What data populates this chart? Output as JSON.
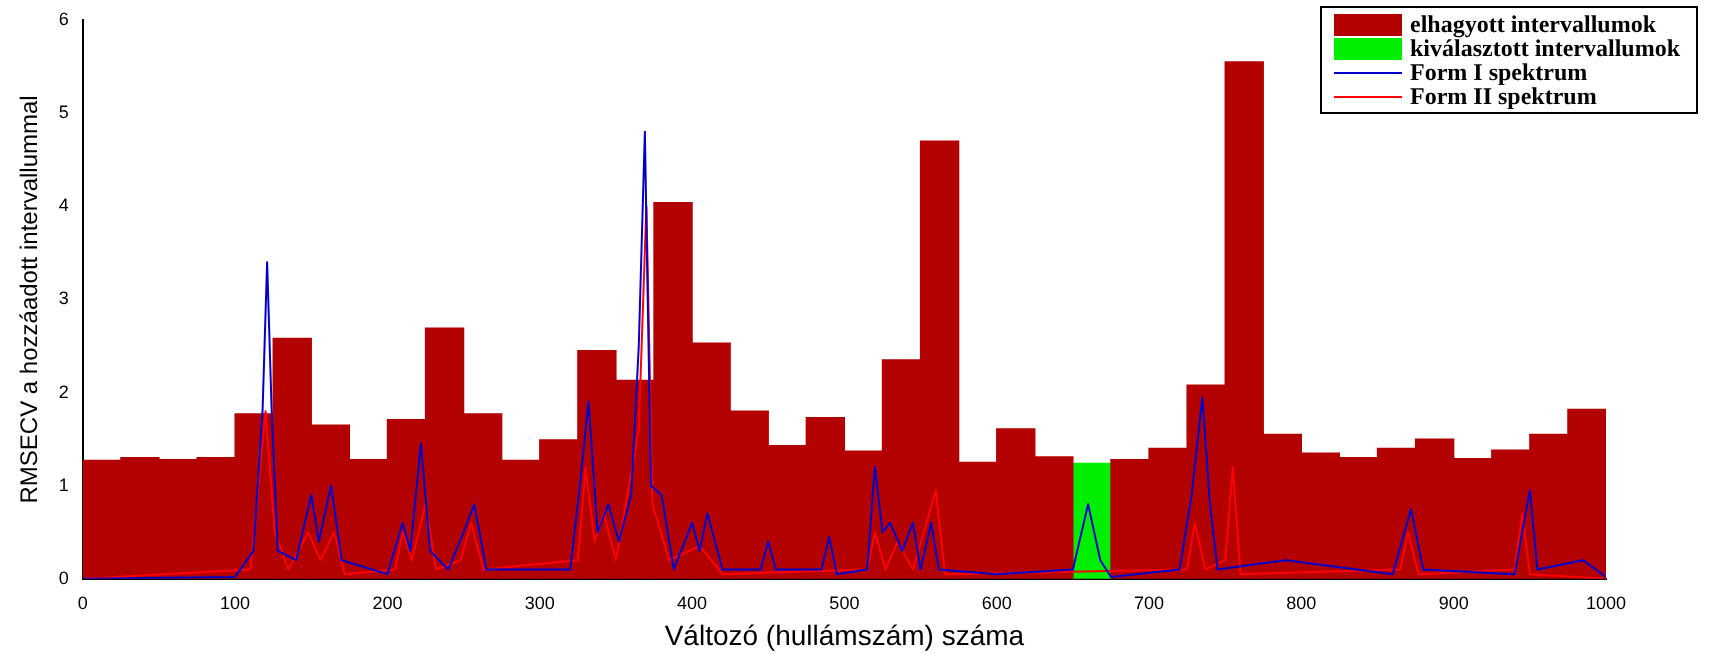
{
  "chart_data": {
    "type": "bar",
    "xlabel": "Változó (hullámszám) száma",
    "ylabel": "RMSECV a hozzáadott intervallummal",
    "xlim": [
      0,
      1000
    ],
    "xticks": [
      0,
      100,
      200,
      300,
      400,
      500,
      600,
      700,
      800,
      900,
      1000
    ],
    "ylim": [
      0,
      6
    ],
    "yticks": [
      0,
      1,
      2,
      3,
      4,
      5,
      6
    ],
    "grid": false,
    "legend": "top right",
    "marker": "none",
    "line_style": "solid",
    "series": [
      {
        "name": "elhagyott intervallumok",
        "color": "#b30000",
        "x": [
          12.5,
          37.5,
          62.5,
          87.5,
          112.5,
          137.5,
          162.5,
          187.5,
          212.5,
          237.5,
          262.5,
          287.5,
          312.5,
          337.5,
          362.5,
          387.5,
          412.5,
          437.5,
          462.5,
          487.5,
          512.5,
          537.5,
          562.5,
          587.5,
          612.5,
          637.5,
          687.5,
          712.5,
          737.5,
          762.5,
          787.5,
          812.5,
          837.5,
          862.5,
          887.5,
          912.5,
          937.5,
          962.5,
          987.5
        ],
        "values": [
          1.27,
          1.3,
          1.28,
          1.3,
          1.77,
          2.58,
          1.65,
          1.28,
          1.71,
          2.69,
          1.77,
          1.27,
          1.49,
          2.45,
          2.13,
          4.04,
          2.53,
          1.8,
          1.43,
          1.73,
          1.37,
          2.35,
          4.7,
          1.25,
          1.61,
          1.31,
          1.28,
          1.4,
          2.08,
          5.55,
          1.55,
          1.35,
          1.3,
          1.4,
          1.5,
          1.29,
          1.38,
          1.55,
          1.82
        ]
      },
      {
        "name": "kiválasztott intervallumok",
        "color": "#00ee00",
        "x": [
          662.5
        ],
        "values": [
          1.24
        ]
      },
      {
        "name": "Form I spektrum",
        "type": "line",
        "color": "#0000cc",
        "x": [
          0,
          100,
          112,
          118,
          121,
          124,
          128,
          140,
          150,
          155,
          163,
          170,
          200,
          210,
          215,
          222,
          228,
          240,
          250,
          257,
          265,
          320,
          326,
          332,
          338,
          345,
          352,
          360,
          365,
          369,
          373,
          380,
          388,
          400,
          405,
          410,
          420,
          445,
          450,
          455,
          485,
          490,
          495,
          515,
          520,
          525,
          530,
          538,
          545,
          550,
          557,
          562,
          600,
          650,
          660,
          668,
          675,
          720,
          728,
          735,
          740,
          745,
          790,
          860,
          872,
          880,
          940,
          950,
          955,
          985,
          1000
        ],
        "values": [
          0,
          0.02,
          0.3,
          1.8,
          3.4,
          1.8,
          0.3,
          0.2,
          0.9,
          0.4,
          1.0,
          0.2,
          0.05,
          0.6,
          0.3,
          1.45,
          0.3,
          0.1,
          0.5,
          0.8,
          0.1,
          0.1,
          0.95,
          1.9,
          0.5,
          0.8,
          0.4,
          0.9,
          2.5,
          4.8,
          1.0,
          0.9,
          0.1,
          0.6,
          0.3,
          0.7,
          0.1,
          0.1,
          0.4,
          0.1,
          0.1,
          0.45,
          0.05,
          0.1,
          1.2,
          0.5,
          0.6,
          0.3,
          0.6,
          0.1,
          0.6,
          0.1,
          0.05,
          0.1,
          0.8,
          0.2,
          0.02,
          0.1,
          0.9,
          1.95,
          0.8,
          0.1,
          0.2,
          0.05,
          0.75,
          0.1,
          0.05,
          0.95,
          0.1,
          0.2,
          0.02
        ]
      },
      {
        "name": "Form II spektrum",
        "type": "line",
        "color": "#ff0000",
        "x": [
          0,
          110,
          120,
          126,
          135,
          148,
          156,
          165,
          172,
          205,
          210,
          216,
          225,
          232,
          248,
          255,
          263,
          325,
          330,
          336,
          342,
          350,
          365,
          370,
          374,
          385,
          405,
          420,
          515,
          520,
          527,
          535,
          545,
          560,
          566,
          725,
          730,
          737,
          750,
          755,
          760,
          865,
          870,
          877,
          940,
          945,
          950,
          1000
        ],
        "values": [
          0,
          0.1,
          1.8,
          0.5,
          0.1,
          0.5,
          0.2,
          0.5,
          0.05,
          0.1,
          0.5,
          0.2,
          0.8,
          0.1,
          0.2,
          0.6,
          0.1,
          0.2,
          1.2,
          0.4,
          0.7,
          0.2,
          1.6,
          4.0,
          0.8,
          0.2,
          0.35,
          0.05,
          0.1,
          0.5,
          0.1,
          0.4,
          0.1,
          0.95,
          0.05,
          0.1,
          0.6,
          0.1,
          0.2,
          1.2,
          0.05,
          0.1,
          0.5,
          0.05,
          0.1,
          0.7,
          0.05,
          0
        ]
      }
    ]
  }
}
